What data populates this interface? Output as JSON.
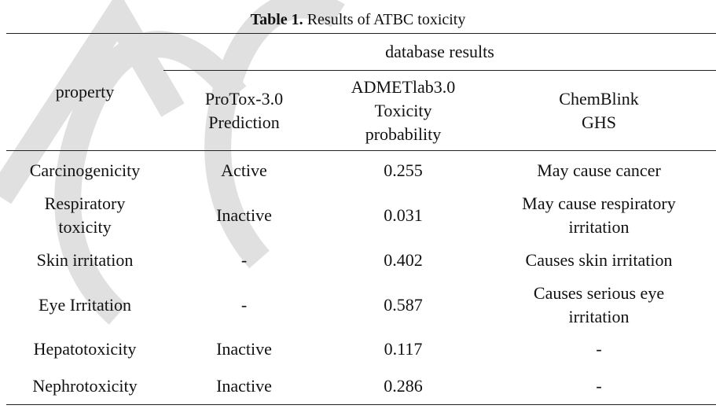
{
  "watermark": "ACCEPTED",
  "caption": {
    "label": "Table 1.",
    "text": " Results of ATBC toxicity"
  },
  "header": {
    "property": "property",
    "group": "database results",
    "columns": [
      "ProTox-3.0 Prediction",
      "ADMETlab3.0 Toxicity probability",
      "ChemBlink GHS"
    ]
  },
  "rows": [
    {
      "property": "Carcinogenicity",
      "protox": "Active",
      "admet": "0.255",
      "ghs": "May cause cancer"
    },
    {
      "property": "Respiratory toxicity",
      "protox": "Inactive",
      "admet": "0.031",
      "ghs": "May cause respiratory irritation"
    },
    {
      "property": "Skin irritation",
      "protox": "-",
      "admet": "0.402",
      "ghs": "Causes skin irritation"
    },
    {
      "property": "Eye Irritation",
      "protox": "-",
      "admet": "0.587",
      "ghs": "Causes serious eye irritation"
    },
    {
      "property": "Hepatotoxicity",
      "protox": "Inactive",
      "admet": "0.117",
      "ghs": "-"
    },
    {
      "property": "Nephrotoxicity",
      "protox": "Inactive",
      "admet": "0.286",
      "ghs": "-"
    }
  ]
}
